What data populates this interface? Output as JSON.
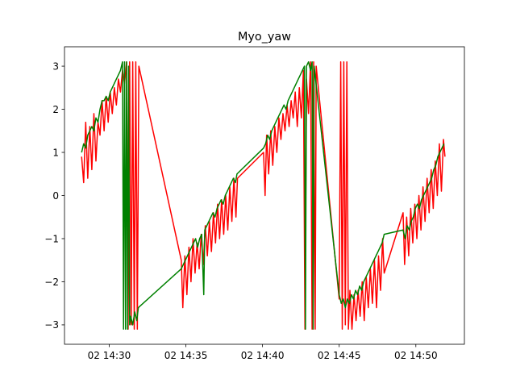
{
  "chart_data": {
    "type": "line",
    "title": "Myo_yaw",
    "xlabel": "",
    "ylabel": "",
    "x_axis": {
      "ticks": [
        "02 14:30",
        "02 14:35",
        "02 14:40",
        "02 14:45",
        "02 14:50"
      ],
      "range": [
        "14:27:05",
        "14:53:10"
      ]
    },
    "y_axis": {
      "ticks": [
        -3,
        -2,
        -1,
        0,
        1,
        2,
        3
      ],
      "range": [
        -3.45,
        3.45
      ]
    },
    "grid": false,
    "legend": "none",
    "series": [
      {
        "color": "#ff0000",
        "points": [
          [
            "14:28:12",
            0.9
          ],
          [
            "14:28:20",
            0.3
          ],
          [
            "14:28:28",
            1.7
          ],
          [
            "14:28:36",
            0.4
          ],
          [
            "14:28:44",
            1.6
          ],
          [
            "14:28:52",
            0.6
          ],
          [
            "14:29:00",
            1.9
          ],
          [
            "14:29:08",
            0.8
          ],
          [
            "14:29:16",
            1.7
          ],
          [
            "14:29:24",
            1.4
          ],
          [
            "14:29:32",
            2.2
          ],
          [
            "14:29:40",
            1.5
          ],
          [
            "14:29:48",
            2.3
          ],
          [
            "14:29:56",
            1.7
          ],
          [
            "14:30:04",
            2.4
          ],
          [
            "14:30:12",
            1.9
          ],
          [
            "14:30:20",
            2.5
          ],
          [
            "14:30:28",
            2.1
          ],
          [
            "14:30:36",
            2.7
          ],
          [
            "14:30:44",
            2.4
          ],
          [
            "14:30:52",
            2.9
          ],
          [
            "14:31:00",
            2.6
          ],
          [
            "14:31:08",
            3.1
          ],
          [
            "14:31:14",
            -3.1
          ],
          [
            "14:31:20",
            3.1
          ],
          [
            "14:31:26",
            -3.0
          ],
          [
            "14:31:32",
            3.1
          ],
          [
            "14:31:38",
            -3.1
          ],
          [
            "14:31:44",
            3.1
          ],
          [
            "14:31:50",
            -3.1
          ],
          [
            "14:31:56",
            3.0
          ],
          [
            "14:34:42",
            -1.5
          ],
          [
            "14:34:48",
            -2.6
          ],
          [
            "14:34:56",
            -1.4
          ],
          [
            "14:35:04",
            -2.3
          ],
          [
            "14:35:12",
            -1.2
          ],
          [
            "14:35:20",
            -2.0
          ],
          [
            "14:35:28",
            -1.0
          ],
          [
            "14:35:36",
            -1.8
          ],
          [
            "14:35:44",
            -1.1
          ],
          [
            "14:35:52",
            -1.7
          ],
          [
            "14:36:00",
            -0.9
          ],
          [
            "14:36:08",
            -1.6
          ],
          [
            "14:36:16",
            -0.7
          ],
          [
            "14:36:24",
            -1.4
          ],
          [
            "14:36:32",
            -0.6
          ],
          [
            "14:36:40",
            -1.3
          ],
          [
            "14:36:48",
            -0.4
          ],
          [
            "14:36:56",
            -1.1
          ],
          [
            "14:37:04",
            -0.2
          ],
          [
            "14:37:12",
            -1.0
          ],
          [
            "14:37:20",
            -0.1
          ],
          [
            "14:37:28",
            -0.9
          ],
          [
            "14:37:36",
            0.0
          ],
          [
            "14:37:44",
            -0.8
          ],
          [
            "14:37:52",
            0.2
          ],
          [
            "14:38:00",
            -0.6
          ],
          [
            "14:38:08",
            0.4
          ],
          [
            "14:38:16",
            -0.5
          ],
          [
            "14:38:22",
            0.4
          ],
          [
            "14:40:04",
            1.0
          ],
          [
            "14:40:10",
            0.0
          ],
          [
            "14:40:16",
            1.4
          ],
          [
            "14:40:24",
            0.5
          ],
          [
            "14:40:32",
            1.5
          ],
          [
            "14:40:40",
            0.7
          ],
          [
            "14:40:48",
            1.6
          ],
          [
            "14:40:56",
            1.0
          ],
          [
            "14:41:04",
            1.8
          ],
          [
            "14:41:12",
            1.3
          ],
          [
            "14:41:20",
            1.9
          ],
          [
            "14:41:28",
            1.5
          ],
          [
            "14:41:36",
            2.1
          ],
          [
            "14:41:44",
            1.6
          ],
          [
            "14:41:52",
            2.2
          ],
          [
            "14:42:00",
            1.8
          ],
          [
            "14:42:08",
            2.4
          ],
          [
            "14:42:16",
            1.6
          ],
          [
            "14:42:24",
            2.5
          ],
          [
            "14:42:32",
            1.8
          ],
          [
            "14:42:40",
            2.9
          ],
          [
            "14:42:46",
            -3.1
          ],
          [
            "14:42:52",
            2.7
          ],
          [
            "14:43:00",
            1.9
          ],
          [
            "14:43:08",
            3.1
          ],
          [
            "14:43:14",
            -3.1
          ],
          [
            "14:43:20",
            3.1
          ],
          [
            "14:43:26",
            -3.1
          ],
          [
            "14:43:30",
            3.0
          ],
          [
            "14:45:00",
            -2.4
          ],
          [
            "14:45:06",
            3.1
          ],
          [
            "14:45:12",
            -3.1
          ],
          [
            "14:45:18",
            3.1
          ],
          [
            "14:45:24",
            -3.0
          ],
          [
            "14:45:30",
            3.1
          ],
          [
            "14:45:36",
            -3.1
          ],
          [
            "14:45:42",
            -2.2
          ],
          [
            "14:45:50",
            -3.1
          ],
          [
            "14:45:58",
            -2.3
          ],
          [
            "14:46:06",
            -2.9
          ],
          [
            "14:46:14",
            -2.2
          ],
          [
            "14:46:22",
            -2.8
          ],
          [
            "14:46:30",
            -2.0
          ],
          [
            "14:46:38",
            -2.9
          ],
          [
            "14:46:46",
            -1.9
          ],
          [
            "14:46:54",
            -2.6
          ],
          [
            "14:47:02",
            -1.7
          ],
          [
            "14:47:10",
            -2.5
          ],
          [
            "14:47:18",
            -1.5
          ],
          [
            "14:47:26",
            -2.6
          ],
          [
            "14:47:34",
            -1.4
          ],
          [
            "14:47:42",
            -2.2
          ],
          [
            "14:47:50",
            -1.0
          ],
          [
            "14:47:56",
            -1.8
          ],
          [
            "14:49:10",
            -0.4
          ],
          [
            "14:49:16",
            -1.6
          ],
          [
            "14:49:24",
            -0.5
          ],
          [
            "14:49:32",
            -1.4
          ],
          [
            "14:49:40",
            -0.3
          ],
          [
            "14:49:48",
            -1.1
          ],
          [
            "14:49:56",
            -0.2
          ],
          [
            "14:50:04",
            -1.0
          ],
          [
            "14:50:12",
            0.0
          ],
          [
            "14:50:20",
            -0.8
          ],
          [
            "14:50:28",
            0.2
          ],
          [
            "14:50:36",
            -0.6
          ],
          [
            "14:50:44",
            0.4
          ],
          [
            "14:50:52",
            -0.4
          ],
          [
            "14:51:00",
            0.6
          ],
          [
            "14:51:08",
            -0.3
          ],
          [
            "14:51:16",
            0.8
          ],
          [
            "14:51:24",
            0.0
          ],
          [
            "14:51:32",
            1.2
          ],
          [
            "14:51:40",
            0.1
          ],
          [
            "14:51:48",
            1.3
          ],
          [
            "14:51:54",
            0.9
          ]
        ]
      },
      {
        "color": "#008000",
        "points": [
          [
            "14:28:12",
            1.0
          ],
          [
            "14:28:20",
            1.2
          ],
          [
            "14:28:28",
            1.1
          ],
          [
            "14:28:36",
            1.4
          ],
          [
            "14:28:44",
            1.5
          ],
          [
            "14:28:52",
            1.6
          ],
          [
            "14:29:00",
            1.5
          ],
          [
            "14:29:08",
            1.8
          ],
          [
            "14:29:16",
            1.7
          ],
          [
            "14:29:24",
            2.0
          ],
          [
            "14:29:32",
            2.2
          ],
          [
            "14:29:40",
            2.2
          ],
          [
            "14:29:48",
            2.3
          ],
          [
            "14:29:56",
            2.2
          ],
          [
            "14:30:04",
            2.4
          ],
          [
            "14:30:12",
            2.5
          ],
          [
            "14:30:20",
            2.6
          ],
          [
            "14:30:28",
            2.7
          ],
          [
            "14:30:36",
            2.8
          ],
          [
            "14:30:44",
            2.9
          ],
          [
            "14:30:52",
            3.1
          ],
          [
            "14:30:56",
            -3.1
          ],
          [
            "14:31:00",
            3.1
          ],
          [
            "14:31:04",
            -3.1
          ],
          [
            "14:31:08",
            3.1
          ],
          [
            "14:31:12",
            -3.1
          ],
          [
            "14:31:16",
            3.0
          ],
          [
            "14:31:20",
            -3.0
          ],
          [
            "14:31:24",
            -2.8
          ],
          [
            "14:31:32",
            -3.0
          ],
          [
            "14:31:40",
            -2.7
          ],
          [
            "14:31:48",
            -2.9
          ],
          [
            "14:31:54",
            -2.6
          ],
          [
            "14:34:42",
            -1.7
          ],
          [
            "14:34:50",
            -1.6
          ],
          [
            "14:34:58",
            -1.5
          ],
          [
            "14:35:06",
            -1.4
          ],
          [
            "14:35:14",
            -1.3
          ],
          [
            "14:35:22",
            -1.2
          ],
          [
            "14:35:30",
            -1.1
          ],
          [
            "14:35:38",
            -1.0
          ],
          [
            "14:35:46",
            -1.2
          ],
          [
            "14:35:54",
            -1.0
          ],
          [
            "14:36:02",
            -0.9
          ],
          [
            "14:36:10",
            -2.3
          ],
          [
            "14:36:14",
            -0.8
          ],
          [
            "14:36:22",
            -0.7
          ],
          [
            "14:36:30",
            -0.6
          ],
          [
            "14:36:38",
            -0.5
          ],
          [
            "14:36:46",
            -0.4
          ],
          [
            "14:36:54",
            -0.5
          ],
          [
            "14:37:02",
            -0.3
          ],
          [
            "14:37:10",
            -0.2
          ],
          [
            "14:37:18",
            -0.1
          ],
          [
            "14:37:26",
            -0.2
          ],
          [
            "14:37:34",
            0.0
          ],
          [
            "14:37:42",
            0.1
          ],
          [
            "14:37:50",
            0.2
          ],
          [
            "14:37:58",
            0.3
          ],
          [
            "14:38:06",
            0.4
          ],
          [
            "14:38:14",
            0.3
          ],
          [
            "14:38:20",
            0.5
          ],
          [
            "14:40:04",
            1.1
          ],
          [
            "14:40:12",
            1.2
          ],
          [
            "14:40:20",
            1.4
          ],
          [
            "14:40:28",
            1.3
          ],
          [
            "14:40:36",
            1.5
          ],
          [
            "14:40:44",
            1.6
          ],
          [
            "14:40:52",
            1.7
          ],
          [
            "14:41:00",
            1.8
          ],
          [
            "14:41:08",
            1.9
          ],
          [
            "14:41:16",
            2.0
          ],
          [
            "14:41:24",
            2.1
          ],
          [
            "14:41:32",
            2.0
          ],
          [
            "14:41:40",
            2.2
          ],
          [
            "14:41:48",
            2.3
          ],
          [
            "14:41:56",
            2.4
          ],
          [
            "14:42:04",
            2.5
          ],
          [
            "14:42:12",
            2.6
          ],
          [
            "14:42:20",
            2.7
          ],
          [
            "14:42:28",
            2.8
          ],
          [
            "14:42:36",
            2.9
          ],
          [
            "14:42:44",
            3.0
          ],
          [
            "14:42:48",
            -3.1
          ],
          [
            "14:42:52",
            3.0
          ],
          [
            "14:43:00",
            3.1
          ],
          [
            "14:43:08",
            2.9
          ],
          [
            "14:43:14",
            3.1
          ],
          [
            "14:43:18",
            -3.1
          ],
          [
            "14:43:22",
            3.0
          ],
          [
            "14:45:00",
            -2.3
          ],
          [
            "14:45:08",
            -2.5
          ],
          [
            "14:45:16",
            -2.4
          ],
          [
            "14:45:24",
            -2.6
          ],
          [
            "14:45:32",
            -2.4
          ],
          [
            "14:45:40",
            -2.5
          ],
          [
            "14:45:48",
            -2.3
          ],
          [
            "14:45:56",
            -2.4
          ],
          [
            "14:46:04",
            -2.2
          ],
          [
            "14:46:12",
            -2.3
          ],
          [
            "14:46:20",
            -2.1
          ],
          [
            "14:46:28",
            -2.2
          ],
          [
            "14:46:36",
            -2.0
          ],
          [
            "14:46:44",
            -1.9
          ],
          [
            "14:46:52",
            -1.8
          ],
          [
            "14:47:00",
            -1.7
          ],
          [
            "14:47:08",
            -1.6
          ],
          [
            "14:47:16",
            -1.5
          ],
          [
            "14:47:24",
            -1.4
          ],
          [
            "14:47:32",
            -1.3
          ],
          [
            "14:47:40",
            -1.2
          ],
          [
            "14:47:48",
            -1.1
          ],
          [
            "14:47:56",
            -0.9
          ],
          [
            "14:49:10",
            -0.8
          ],
          [
            "14:49:18",
            -1.0
          ],
          [
            "14:49:26",
            -0.7
          ],
          [
            "14:49:34",
            -0.8
          ],
          [
            "14:49:42",
            -0.6
          ],
          [
            "14:49:50",
            -0.5
          ],
          [
            "14:49:58",
            -0.3
          ],
          [
            "14:50:06",
            -0.2
          ],
          [
            "14:50:14",
            -0.3
          ],
          [
            "14:50:22",
            -0.1
          ],
          [
            "14:50:30",
            0.0
          ],
          [
            "14:50:38",
            0.1
          ],
          [
            "14:50:46",
            0.2
          ],
          [
            "14:50:54",
            0.3
          ],
          [
            "14:51:02",
            0.4
          ],
          [
            "14:51:10",
            0.6
          ],
          [
            "14:51:18",
            0.7
          ],
          [
            "14:51:26",
            0.9
          ],
          [
            "14:51:34",
            1.0
          ],
          [
            "14:51:42",
            1.1
          ],
          [
            "14:51:50",
            1.2
          ]
        ]
      }
    ]
  }
}
